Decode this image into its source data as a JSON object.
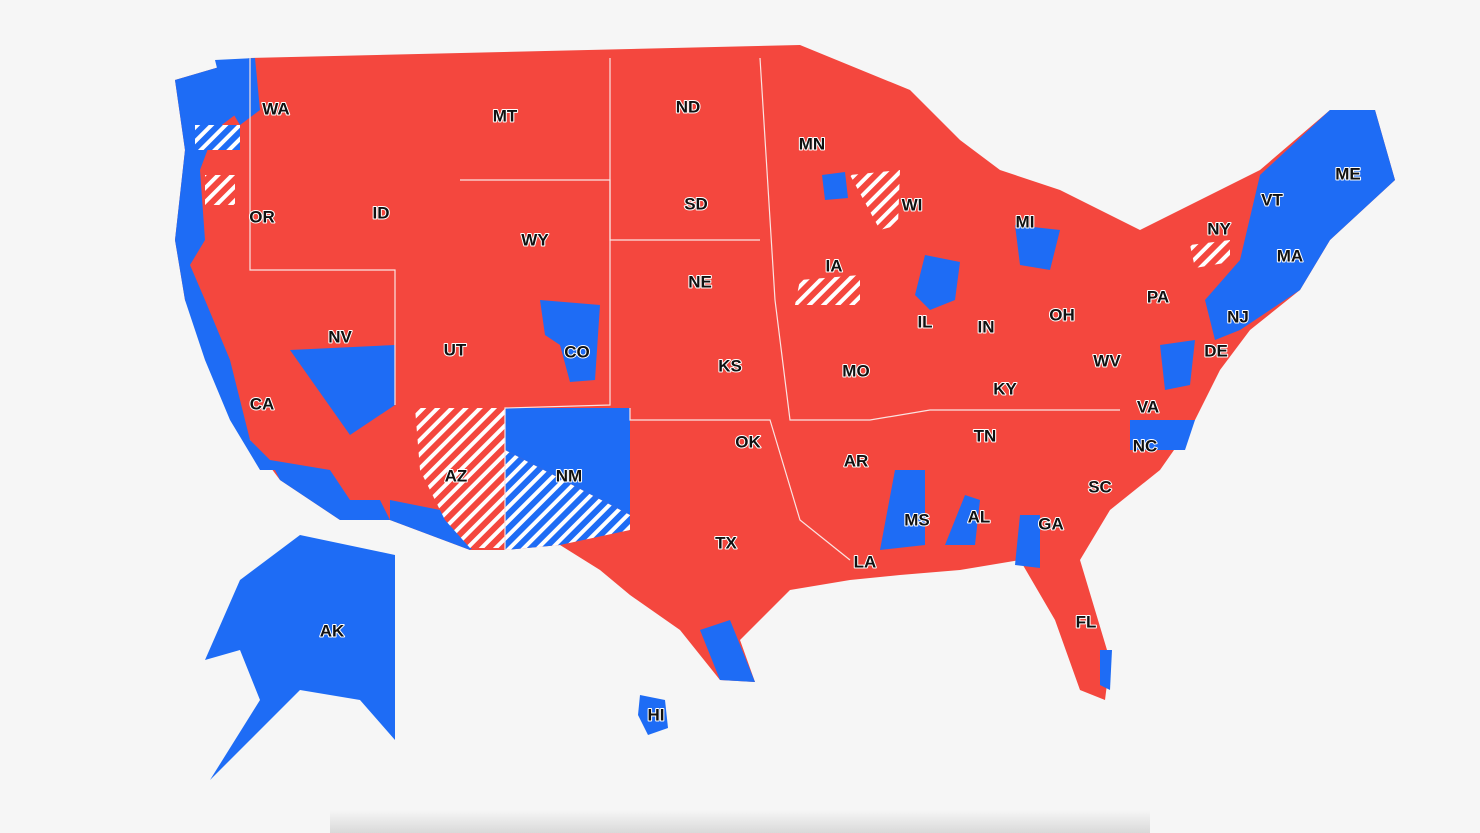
{
  "map": {
    "state_labels": [
      "WA",
      "OR",
      "CA",
      "ID",
      "NV",
      "MT",
      "WY",
      "UT",
      "AZ",
      "CO",
      "NM",
      "ND",
      "SD",
      "NE",
      "KS",
      "OK",
      "TX",
      "MN",
      "IA",
      "MO",
      "AR",
      "LA",
      "WI",
      "IL",
      "MI",
      "IN",
      "OH",
      "KY",
      "TN",
      "MS",
      "AL",
      "GA",
      "FL",
      "SC",
      "NC",
      "VA",
      "WV",
      "PA",
      "NY",
      "VT",
      "ME",
      "MA",
      "NJ",
      "DE",
      "AK",
      "HI"
    ]
  }
}
